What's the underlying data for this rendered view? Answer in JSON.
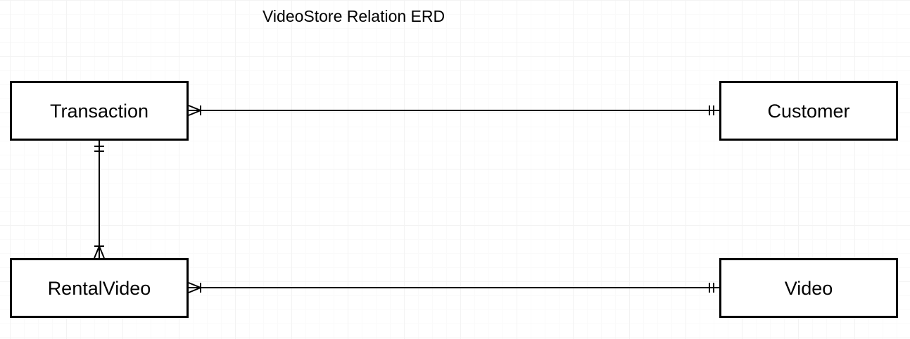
{
  "title": "VideoStore Relation ERD",
  "entities": {
    "transaction": "Transaction",
    "customer": "Customer",
    "rental_video": "RentalVideo",
    "video": "Video"
  },
  "relationships": [
    {
      "from": "Transaction",
      "to": "Customer",
      "from_end": "many",
      "to_end": "one-and-only-one"
    },
    {
      "from": "Transaction",
      "to": "RentalVideo",
      "from_end": "one-and-only-one",
      "to_end": "one-or-many"
    },
    {
      "from": "RentalVideo",
      "to": "Video",
      "from_end": "many",
      "to_end": "one-and-only-one"
    }
  ],
  "colors": {
    "line": "#000000",
    "background": "#ffffff",
    "grid": "#f3f3f3"
  }
}
